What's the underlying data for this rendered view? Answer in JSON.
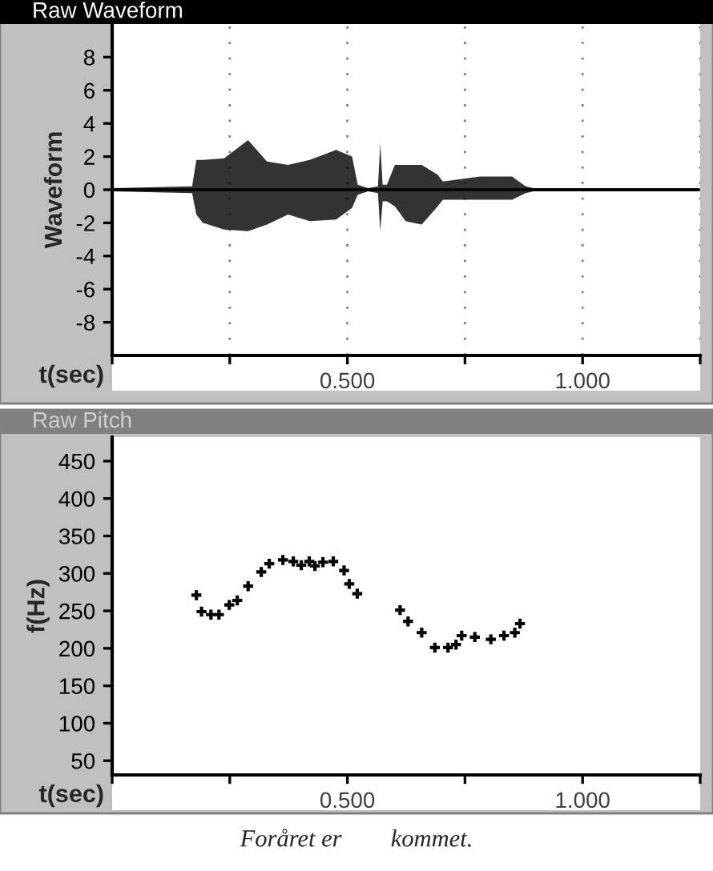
{
  "chart_data": [
    {
      "type": "line",
      "title": "Raw Waveform",
      "xlabel": "t(sec)",
      "ylabel": "Waveform",
      "x": [
        0,
        0.17,
        0.179,
        0.193,
        0.238,
        0.289,
        0.329,
        0.374,
        0.42,
        0.476,
        0.51,
        0.522,
        0.544,
        0.565,
        0.57,
        0.575,
        0.584,
        0.601,
        0.624,
        0.658,
        0.692,
        0.703,
        0.782,
        0.85,
        0.879,
        0.896,
        1.248
      ],
      "series": [
        {
          "color": "#000000",
          "values": [
            0,
            0,
            0,
            0,
            0,
            0,
            0,
            0,
            0,
            0,
            0,
            0,
            0,
            0,
            0,
            0,
            0,
            0,
            0,
            0,
            0,
            0,
            0,
            0,
            0,
            0,
            0
          ],
          "lower": [
            -0.1,
            -0.2,
            -1.5,
            -2.0,
            -2.4,
            -2.5,
            -2.1,
            -1.5,
            -1.9,
            -1.8,
            -1.1,
            -0.3,
            -0.1,
            -0.2,
            -2.5,
            -0.7,
            -0.7,
            -1.0,
            -1.9,
            -2.1,
            -1.0,
            -0.6,
            -0.6,
            -0.6,
            -0.2,
            -0.1,
            -0.1
          ],
          "upper": [
            0.1,
            0.2,
            1.8,
            1.8,
            1.9,
            3.0,
            1.7,
            1.5,
            1.8,
            2.4,
            2.0,
            0.3,
            0.1,
            0.2,
            2.8,
            0.3,
            0.3,
            1.5,
            1.5,
            1.5,
            0.9,
            0.5,
            0.8,
            0.8,
            0.2,
            0.1,
            0.1
          ]
        }
      ],
      "xlim": [
        0,
        1.25
      ],
      "xticks": [
        {
          "value": 0,
          "label": null
        },
        {
          "value": 0.25,
          "label": null
        },
        {
          "value": 0.5,
          "label": "0.500"
        },
        {
          "value": 0.75,
          "label": null
        },
        {
          "value": 1.0,
          "label": "1.000"
        },
        {
          "value": 1.25,
          "label": null
        }
      ],
      "ylim": [
        -10,
        10
      ],
      "yticks": [
        -8,
        -6,
        -4,
        -2,
        0,
        2,
        4,
        6,
        8
      ],
      "grid": "x",
      "legend": false
    },
    {
      "type": "scatter",
      "title": "Raw Pitch",
      "xlabel": "t(sec)",
      "ylabel": "f(Hz)",
      "series": [
        {
          "color": "#000000",
          "x": [
            0.179,
            0.19,
            0.21,
            0.227,
            0.249,
            0.266,
            0.289,
            0.317,
            0.334,
            0.363,
            0.385,
            0.402,
            0.419,
            0.431,
            0.448,
            0.47,
            0.493,
            0.504,
            0.521,
            0.612,
            0.629,
            0.658,
            0.686,
            0.714,
            0.731,
            0.743,
            0.771,
            0.805,
            0.833,
            0.856,
            0.867
          ],
          "values": [
            271,
            249,
            245,
            245,
            258,
            264,
            283,
            302,
            313,
            318,
            316,
            311,
            316,
            310,
            315,
            316,
            304,
            286,
            273,
            251,
            236,
            221,
            201,
            201,
            205,
            217,
            215,
            212,
            217,
            221,
            233
          ]
        }
      ],
      "marker": "cross",
      "xlim": [
        0,
        1.25
      ],
      "xticks": [
        {
          "value": 0,
          "label": null
        },
        {
          "value": 0.25,
          "label": null
        },
        {
          "value": 0.5,
          "label": "0.500"
        },
        {
          "value": 0.75,
          "label": null
        },
        {
          "value": 1.0,
          "label": "1.000"
        },
        {
          "value": 1.25,
          "label": null
        }
      ],
      "ylim": [
        31,
        482
      ],
      "yticks": [
        50,
        100,
        150,
        200,
        250,
        300,
        350,
        400,
        450
      ],
      "grid": false,
      "legend": false,
      "annotations": [
        "Foråret er        kommet."
      ]
    }
  ]
}
